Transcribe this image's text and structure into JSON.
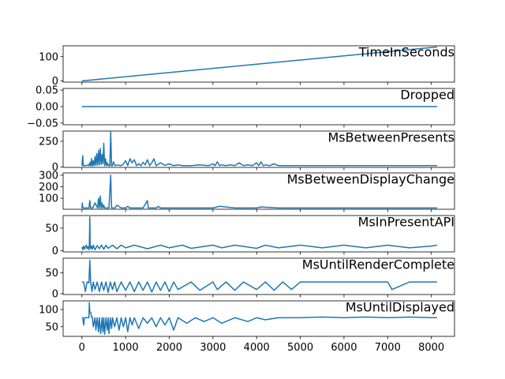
{
  "chart_data": [
    {
      "type": "line",
      "title": "TimeInSeconds",
      "xlim": [
        -430,
        8530
      ],
      "ylim": [
        -5,
        145
      ],
      "yticks": [
        {
          "v": 0,
          "label": "0"
        },
        {
          "v": 100,
          "label": "100"
        }
      ],
      "series": [
        {
          "color": "#1f77b4",
          "x": [
            0,
            8130
          ],
          "y": [
            0,
            140
          ]
        }
      ]
    },
    {
      "type": "line",
      "title": "Dropped",
      "xlim": [
        -430,
        8530
      ],
      "ylim": [
        -0.055,
        0.055
      ],
      "yticks": [
        {
          "v": 0.05,
          "label": "0.05"
        },
        {
          "v": 0,
          "label": "0.00"
        },
        {
          "v": -0.05,
          "label": "−0.05"
        }
      ],
      "series": [
        {
          "color": "#1f77b4",
          "x": [
            0,
            8130
          ],
          "y": [
            0,
            0
          ]
        }
      ]
    },
    {
      "type": "line",
      "title": "MsBetweenPresents",
      "xlim": [
        -430,
        8530
      ],
      "ylim": [
        -5,
        350
      ],
      "yticks": [
        {
          "v": 0,
          "label": "0"
        },
        {
          "v": 250,
          "label": "250"
        }
      ],
      "series": [
        {
          "color": "#1f77b4",
          "x": [
            0,
            20,
            30,
            50,
            80,
            100,
            140,
            160,
            180,
            190,
            200,
            210,
            220,
            240,
            260,
            280,
            300,
            320,
            340,
            360,
            380,
            400,
            420,
            440,
            460,
            480,
            500,
            520,
            540,
            560,
            580,
            600,
            620,
            640,
            660,
            680,
            700,
            720,
            760,
            800,
            840,
            900,
            950,
            1000,
            1050,
            1100,
            1150,
            1200,
            1250,
            1300,
            1350,
            1400,
            1450,
            1500,
            1550,
            1600,
            1650,
            1700,
            1800,
            1900,
            2000,
            2100,
            2200,
            2300,
            2500,
            2700,
            2900,
            3000,
            3050,
            3100,
            3150,
            3200,
            3300,
            3400,
            3500,
            3600,
            3700,
            3800,
            3900,
            4000,
            4050,
            4100,
            4150,
            4200,
            4300,
            4400,
            4500,
            4600,
            4800,
            5000,
            5200,
            5500,
            6000,
            6500,
            7000,
            7500,
            8130
          ],
          "y": [
            12,
            110,
            10,
            12,
            15,
            12,
            20,
            12,
            40,
            12,
            45,
            12,
            80,
            10,
            60,
            12,
            100,
            14,
            130,
            16,
            160,
            20,
            180,
            25,
            120,
            30,
            230,
            12,
            80,
            12,
            40,
            12,
            20,
            10,
            340,
            10,
            12,
            50,
            12,
            20,
            15,
            12,
            30,
            60,
            12,
            80,
            40,
            70,
            12,
            30,
            12,
            45,
            20,
            70,
            12,
            40,
            80,
            12,
            40,
            15,
            30,
            12,
            20,
            12,
            12,
            20,
            12,
            30,
            12,
            50,
            12,
            20,
            12,
            20,
            12,
            40,
            12,
            20,
            12,
            40,
            12,
            50,
            12,
            20,
            12,
            30,
            12,
            12,
            12,
            12,
            12,
            12,
            12,
            12,
            12,
            12,
            12
          ]
        }
      ]
    },
    {
      "type": "line",
      "title": "MsBetweenDisplayChange",
      "xlim": [
        -430,
        8530
      ],
      "ylim": [
        5,
        320
      ],
      "yticks": [
        {
          "v": 300,
          "label": "300"
        },
        {
          "v": 200,
          "label": "200"
        },
        {
          "v": 100,
          "label": "100"
        }
      ],
      "series": [
        {
          "color": "#1f77b4",
          "x": [
            0,
            10,
            20,
            40,
            100,
            160,
            180,
            200,
            250,
            300,
            360,
            380,
            400,
            420,
            440,
            460,
            480,
            500,
            520,
            560,
            620,
            660,
            680,
            700,
            760,
            800,
            900,
            1000,
            1050,
            1100,
            1200,
            1300,
            1400,
            1500,
            1520,
            1540,
            1600,
            1700,
            1750,
            1800,
            2000,
            2200,
            2500,
            3000,
            3150,
            3500,
            4000,
            4100,
            4500,
            5000,
            6000,
            7000,
            8130
          ],
          "y": [
            16,
            60,
            16,
            16,
            16,
            16,
            80,
            16,
            16,
            60,
            16,
            100,
            16,
            120,
            16,
            60,
            16,
            40,
            16,
            16,
            16,
            300,
            16,
            16,
            16,
            40,
            16,
            16,
            30,
            16,
            16,
            16,
            16,
            80,
            16,
            16,
            16,
            16,
            30,
            16,
            16,
            16,
            16,
            16,
            30,
            16,
            16,
            25,
            16,
            16,
            16,
            16,
            16
          ]
        }
      ]
    },
    {
      "type": "line",
      "title": "MsInPresentAPI",
      "xlim": [
        -430,
        8530
      ],
      "ylim": [
        -3,
        78
      ],
      "yticks": [
        {
          "v": 50,
          "label": "50"
        },
        {
          "v": 0,
          "label": "0"
        }
      ],
      "series": [
        {
          "color": "#1f77b4",
          "x": [
            0,
            20,
            40,
            60,
            80,
            100,
            120,
            140,
            160,
            170,
            180,
            190,
            200,
            220,
            240,
            260,
            300,
            350,
            400,
            450,
            500,
            550,
            600,
            700,
            800,
            900,
            1000,
            1200,
            1500,
            1800,
            2000,
            2300,
            2500,
            3000,
            3200,
            3500,
            4000,
            4200,
            4500,
            5000,
            5500,
            6000,
            6500,
            7000,
            7500,
            8000,
            8130
          ],
          "y": [
            8,
            2,
            10,
            3,
            8,
            12,
            4,
            9,
            2,
            10,
            75,
            12,
            4,
            10,
            3,
            12,
            2,
            11,
            4,
            12,
            3,
            12,
            5,
            12,
            4,
            12,
            6,
            12,
            4,
            12,
            6,
            12,
            5,
            12,
            6,
            12,
            5,
            12,
            6,
            12,
            6,
            12,
            6,
            12,
            6,
            10,
            12
          ]
        }
      ]
    },
    {
      "type": "line",
      "title": "MsUntilRenderComplete",
      "xlim": [
        -430,
        8530
      ],
      "ylim": [
        -2,
        85
      ],
      "yticks": [
        {
          "v": 50,
          "label": "50"
        },
        {
          "v": 0,
          "label": "0"
        }
      ],
      "series": [
        {
          "color": "#1f77b4",
          "x": [
            0,
            40,
            80,
            120,
            160,
            180,
            200,
            230,
            260,
            300,
            350,
            400,
            450,
            500,
            550,
            600,
            650,
            700,
            750,
            800,
            900,
            1000,
            1100,
            1200,
            1300,
            1400,
            1500,
            1600,
            1700,
            1800,
            1900,
            2000,
            2100,
            2200,
            2500,
            2700,
            3000,
            3100,
            3300,
            3500,
            3700,
            4000,
            4200,
            4400,
            4600,
            4800,
            5000,
            5500,
            6000,
            6500,
            7000,
            7100,
            7500,
            8000,
            8130
          ],
          "y": [
            28,
            28,
            5,
            28,
            26,
            80,
            28,
            5,
            28,
            10,
            28,
            5,
            28,
            8,
            28,
            3,
            28,
            10,
            28,
            5,
            28,
            8,
            28,
            5,
            28,
            8,
            28,
            4,
            28,
            8,
            28,
            5,
            28,
            10,
            28,
            8,
            28,
            10,
            28,
            8,
            28,
            10,
            28,
            8,
            28,
            10,
            28,
            28,
            28,
            28,
            28,
            10,
            28,
            28,
            28
          ]
        }
      ]
    },
    {
      "type": "line",
      "title": "MsUntilDisplayed",
      "xlim": [
        -430,
        8530
      ],
      "ylim": [
        22,
        125
      ],
      "yticks": [
        {
          "v": 100,
          "label": "100"
        },
        {
          "v": 50,
          "label": "50"
        }
      ],
      "series": [
        {
          "color": "#1f77b4",
          "x": [
            0,
            20,
            40,
            60,
            100,
            150,
            160,
            170,
            180,
            190,
            200,
            220,
            240,
            260,
            300,
            320,
            350,
            380,
            400,
            430,
            460,
            480,
            500,
            520,
            550,
            580,
            600,
            620,
            650,
            680,
            700,
            750,
            800,
            850,
            900,
            950,
            1000,
            1050,
            1100,
            1150,
            1200,
            1300,
            1400,
            1500,
            1600,
            1700,
            1800,
            1900,
            2000,
            2100,
            2200,
            2400,
            2600,
            2800,
            3000,
            3200,
            3500,
            3800,
            4000,
            4200,
            4500,
            5000,
            5500,
            6000,
            6500,
            7000,
            7500,
            8000,
            8130
          ],
          "y": [
            76,
            76,
            55,
            76,
            76,
            76,
            76,
            120,
            92,
            92,
            92,
            78,
            78,
            50,
            76,
            40,
            76,
            35,
            76,
            30,
            76,
            35,
            76,
            28,
            76,
            40,
            76,
            30,
            76,
            45,
            76,
            50,
            76,
            40,
            76,
            50,
            76,
            35,
            76,
            55,
            76,
            45,
            76,
            60,
            76,
            50,
            76,
            55,
            76,
            40,
            76,
            60,
            76,
            65,
            76,
            60,
            76,
            65,
            76,
            70,
            76,
            76,
            78,
            76,
            78,
            76,
            78,
            76,
            76
          ]
        }
      ]
    }
  ],
  "x_axis": {
    "ticks": [
      {
        "v": 0,
        "label": "0"
      },
      {
        "v": 1000,
        "label": "1000"
      },
      {
        "v": 2000,
        "label": "2000"
      },
      {
        "v": 3000,
        "label": "3000"
      },
      {
        "v": 4000,
        "label": "4000"
      },
      {
        "v": 5000,
        "label": "5000"
      },
      {
        "v": 6000,
        "label": "6000"
      },
      {
        "v": 7000,
        "label": "7000"
      },
      {
        "v": 8000,
        "label": "8000"
      }
    ]
  }
}
